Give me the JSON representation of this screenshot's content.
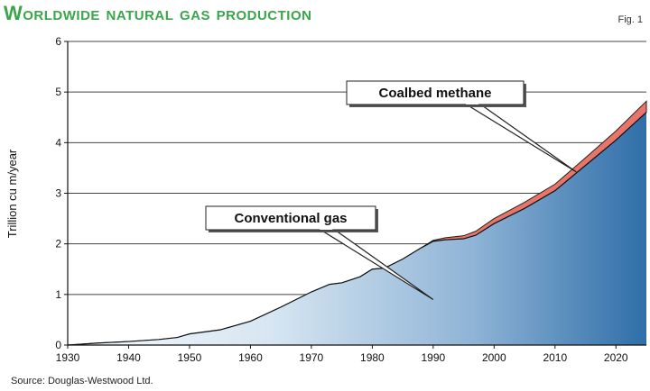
{
  "header": {
    "title": "Worldwide natural gas production",
    "fig_label": "Fig. 1"
  },
  "footer": {
    "source": "Source: Douglas-Westwood Ltd."
  },
  "colors": {
    "title": "#3aa54a",
    "conventional_fill_light": "#e6eff7",
    "conventional_fill_dark": "#2f6ea8",
    "coalbed_fill": "#e8756a",
    "grid": "#333333"
  },
  "chart_data": {
    "type": "area",
    "title": "Worldwide natural gas production",
    "xlabel": "",
    "ylabel": "Trillion cu m/year",
    "xlim": [
      1930,
      2025
    ],
    "ylim": [
      0,
      6
    ],
    "xticks": [
      1930,
      1940,
      1950,
      1960,
      1970,
      1980,
      1990,
      2000,
      2010,
      2020
    ],
    "yticks": [
      0,
      1,
      2,
      3,
      4,
      5,
      6
    ],
    "grid": true,
    "stacked": true,
    "series": [
      {
        "name": "Conventional gas",
        "x": [
          1930,
          1935,
          1940,
          1945,
          1948,
          1950,
          1955,
          1960,
          1965,
          1970,
          1973,
          1975,
          1978,
          1980,
          1982,
          1985,
          1988,
          1990,
          1992,
          1995,
          1997,
          2000,
          2005,
          2010,
          2015,
          2020,
          2025
        ],
        "y": [
          0.0,
          0.04,
          0.07,
          0.11,
          0.15,
          0.22,
          0.3,
          0.47,
          0.75,
          1.05,
          1.2,
          1.23,
          1.35,
          1.5,
          1.52,
          1.7,
          1.92,
          2.05,
          2.08,
          2.1,
          2.17,
          2.4,
          2.7,
          3.05,
          3.55,
          4.05,
          4.6
        ]
      },
      {
        "name": "Coalbed methane",
        "x": [
          1930,
          1935,
          1940,
          1945,
          1948,
          1950,
          1955,
          1960,
          1965,
          1970,
          1973,
          1975,
          1978,
          1980,
          1982,
          1985,
          1988,
          1990,
          1992,
          1995,
          1997,
          2000,
          2005,
          2010,
          2015,
          2020,
          2025
        ],
        "y": [
          0,
          0,
          0,
          0,
          0,
          0,
          0,
          0,
          0,
          0,
          0,
          0,
          0,
          0,
          0,
          0,
          0,
          0.02,
          0.04,
          0.06,
          0.08,
          0.1,
          0.12,
          0.13,
          0.15,
          0.18,
          0.22
        ]
      }
    ],
    "annotations": [
      {
        "text": "Conventional gas",
        "target": "Conventional gas"
      },
      {
        "text": "Coalbed methane",
        "target": "Coalbed methane"
      }
    ]
  }
}
